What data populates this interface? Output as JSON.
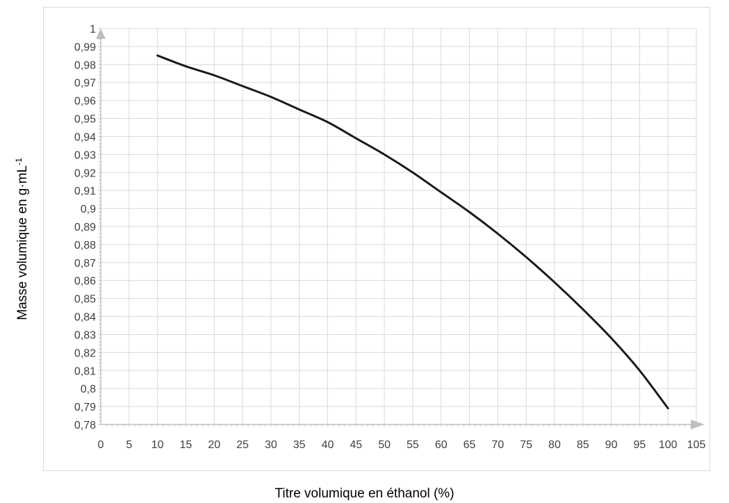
{
  "chart_data": {
    "type": "line",
    "title": "",
    "xlabel": "Titre volumique en éthanol (%)",
    "ylabel_main": "Masse volumique en g·mL",
    "ylabel_sup": "-1",
    "xlim": [
      0,
      105
    ],
    "ylim": [
      0.78,
      1
    ],
    "x_ticks": [
      "0",
      "5",
      "10",
      "15",
      "20",
      "25",
      "30",
      "35",
      "40",
      "45",
      "50",
      "55",
      "60",
      "65",
      "70",
      "75",
      "80",
      "85",
      "90",
      "95",
      "100",
      "105"
    ],
    "y_ticks": [
      "0,78",
      "0,79",
      "0,8",
      "0,81",
      "0,82",
      "0,83",
      "0,84",
      "0,85",
      "0,86",
      "0,87",
      "0,88",
      "0,89",
      "0,9",
      "0,91",
      "0,92",
      "0,93",
      "0,94",
      "0,95",
      "0,96",
      "0,97",
      "0,98",
      "0,99",
      "1"
    ],
    "grid": true,
    "series": [
      {
        "color": "#1a1a1a",
        "x": [
          10,
          15,
          20,
          25,
          30,
          35,
          40,
          45,
          50,
          55,
          60,
          65,
          70,
          75,
          80,
          85,
          90,
          95,
          100
        ],
        "y": [
          0.985,
          0.979,
          0.974,
          0.968,
          0.962,
          0.955,
          0.948,
          0.939,
          0.93,
          0.92,
          0.909,
          0.898,
          0.886,
          0.873,
          0.859,
          0.844,
          0.828,
          0.81,
          0.789
        ]
      }
    ]
  }
}
